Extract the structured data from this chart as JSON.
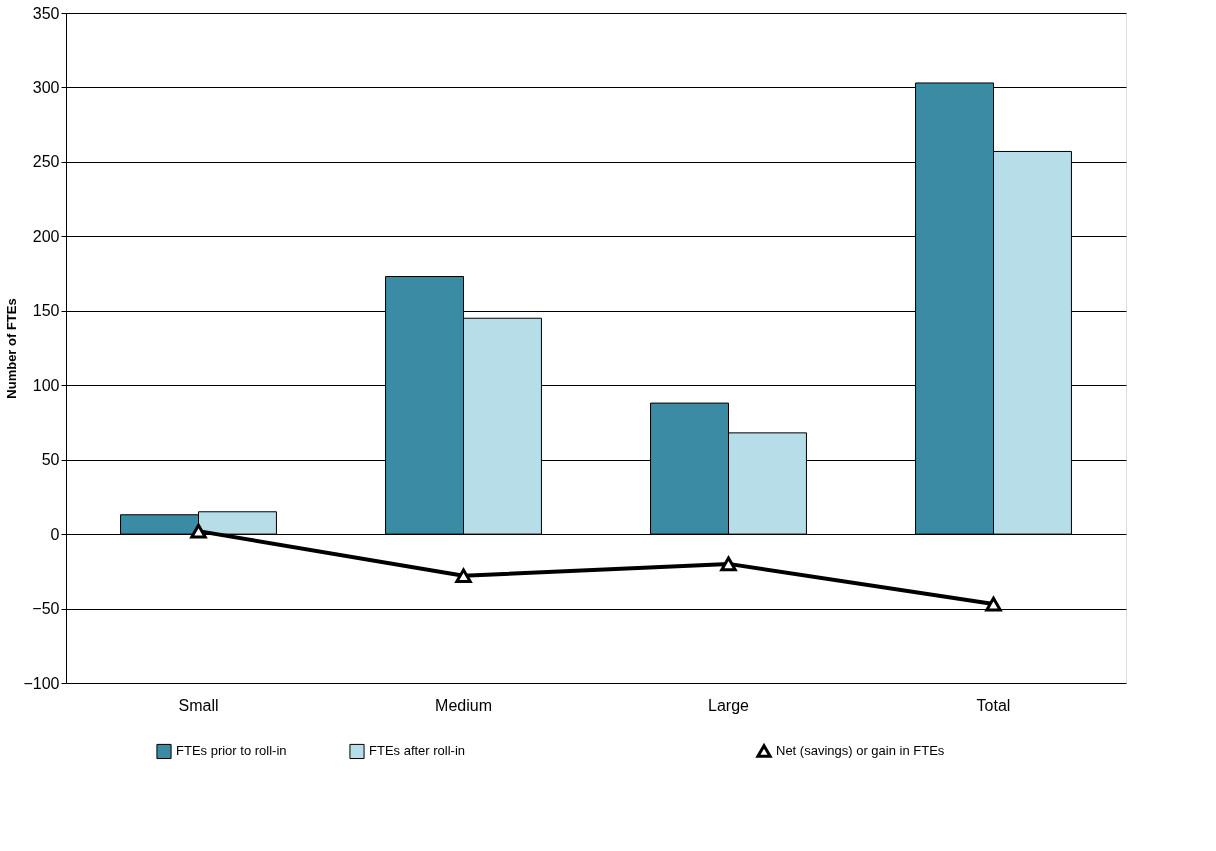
{
  "chart_data": {
    "type": "bar",
    "ylabel": "Number of FTEs",
    "categories": [
      "Small",
      "Medium",
      "Large",
      "Total"
    ],
    "series": [
      {
        "name": "FTEs prior to roll-in",
        "color": "#3a8ba3",
        "values": [
          13,
          173,
          88,
          303
        ]
      },
      {
        "name": "FTEs after roll-in",
        "color": "#b7dde8",
        "values": [
          15,
          145,
          68,
          257
        ]
      },
      {
        "name": "Net (savings) or gain in FTEs",
        "type": "line",
        "color": "#000000",
        "marker": "triangle",
        "values": [
          2,
          -28,
          -20,
          -47
        ]
      }
    ],
    "ylim": [
      -100,
      350
    ],
    "yticks": [
      -100,
      -50,
      0,
      50,
      100,
      150,
      200,
      250,
      300,
      350
    ],
    "grid": "y",
    "legend": "bottom"
  }
}
